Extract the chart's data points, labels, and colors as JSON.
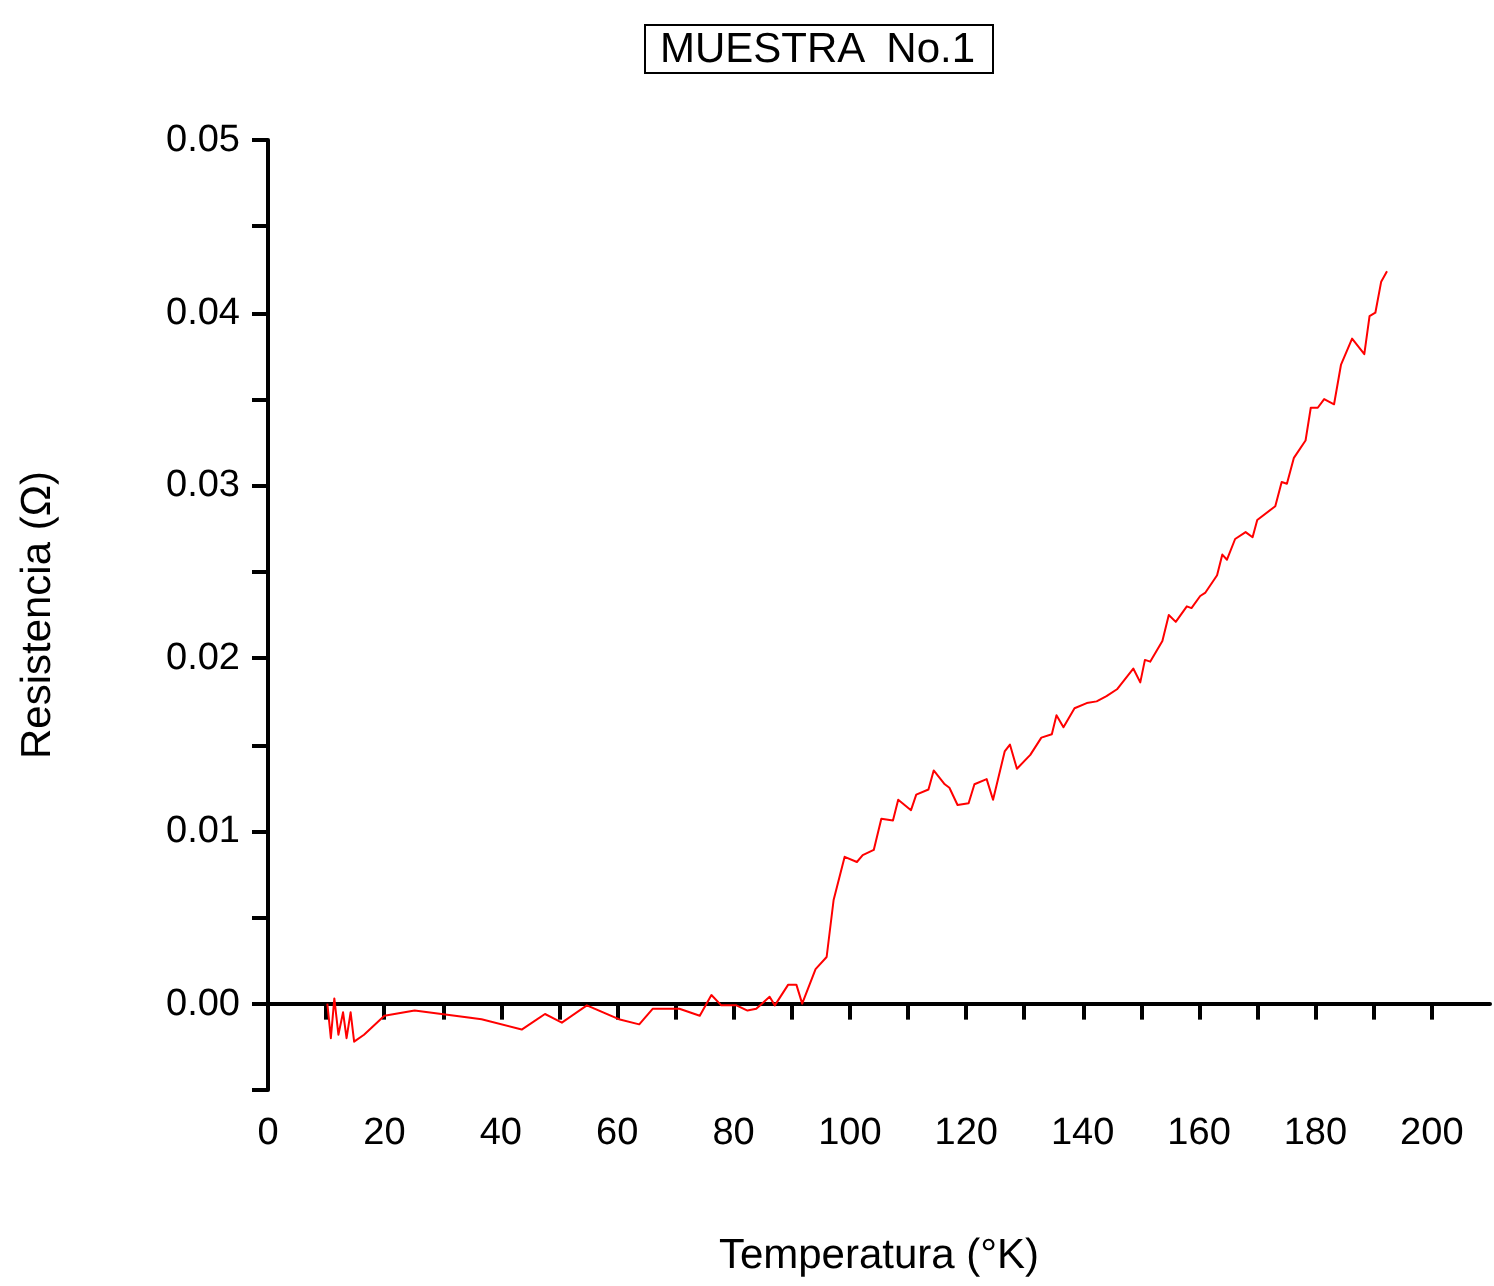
{
  "chart_data": {
    "type": "line",
    "title": "MUESTRA  No.1",
    "xlabel": "Temperatura (°K)",
    "ylabel": "Resistencia (Ω)",
    "xlim": [
      0,
      210
    ],
    "ylim": [
      -0.005,
      0.05
    ],
    "xticks": [
      0,
      {
        "value": 10,
        "label": null
      },
      20,
      {
        "value": 30,
        "label": null
      },
      40,
      {
        "value": 50,
        "label": null
      },
      60,
      {
        "value": 70,
        "label": null
      },
      80,
      {
        "value": 90,
        "label": null
      },
      100,
      {
        "value": 110,
        "label": null
      },
      120,
      {
        "value": 130,
        "label": null
      },
      140,
      {
        "value": 150,
        "label": null
      },
      160,
      {
        "value": 170,
        "label": null
      },
      180,
      {
        "value": 190,
        "label": null
      },
      200
    ],
    "yticks": [
      {
        "value": -0.005,
        "label": null
      },
      {
        "value": 0,
        "label": "0.00"
      },
      {
        "value": 0.005,
        "label": null
      },
      {
        "value": 0.01,
        "label": "0.01"
      },
      {
        "value": 0.015,
        "label": null
      },
      {
        "value": 0.02,
        "label": "0.02"
      },
      {
        "value": 0.025,
        "label": null
      },
      {
        "value": 0.03,
        "label": "0.03"
      },
      {
        "value": 0.035,
        "label": null
      },
      {
        "value": 0.04,
        "label": "0.04"
      },
      {
        "value": 0.045,
        "label": null
      },
      {
        "value": 0.05,
        "label": "0.05"
      }
    ],
    "marker": "none",
    "line_style": "solid",
    "series": [
      {
        "color": "#ff0000",
        "x": [
          10.2,
          10.8,
          11.4,
          12.1,
          12.9,
          13.5,
          14.2,
          14.8,
          16.5,
          20,
          25.2,
          29.8,
          36.7,
          43.6,
          47.6,
          50.5,
          54.8,
          60.3,
          63.8,
          66.1,
          70.7,
          74.2,
          76.2,
          77.9,
          80.5,
          82.4,
          83.9,
          86.2,
          87.1,
          89.4,
          90.8,
          91.8,
          94.1,
          96.0,
          97.2,
          99.1,
          101.2,
          102.2,
          104.1,
          105.4,
          107.4,
          108.3,
          110.5,
          111.4,
          113.5,
          114.4,
          116.3,
          117.1,
          118.5,
          120.4,
          121.4,
          123.5,
          124.6,
          126.6,
          127.5,
          128.7,
          131.0,
          132.9,
          134.7,
          135.5,
          136.7,
          138.6,
          140.7,
          142.4,
          144.1,
          145.9,
          148.7,
          149.9,
          150.7,
          151.6,
          153.7,
          154.8,
          156.0,
          157.9,
          158.7,
          160.2,
          161.1,
          163.1,
          164.0,
          164.8,
          166.2,
          168.0,
          169.2,
          170.0,
          173.1,
          174.2,
          175.1,
          176.3,
          178.3,
          179.2,
          180.4,
          181.5,
          183.2,
          184.4,
          186.3,
          188.4,
          189.3,
          190.3,
          191.3,
          192.3
        ],
        "values": [
          0,
          -0.002,
          0.0003,
          -0.0018,
          -0.0005,
          -0.002,
          -0.0005,
          -0.0022,
          -0.0018,
          -0.0007,
          -0.0004,
          -0.0006,
          -0.0009,
          -0.0015,
          -0.0006,
          -0.0011,
          -0.0001,
          -0.0009,
          -0.0012,
          -0.0003,
          -0.0003,
          -0.0007,
          0.0005,
          -0.0001,
          -0.0001,
          -0.0004,
          -0.0003,
          0.0004,
          -0.0001,
          0.0011,
          0.0011,
          0,
          0.002,
          0.0027,
          0.006,
          0.0085,
          0.0082,
          0.0086,
          0.0089,
          0.0107,
          0.0106,
          0.0118,
          0.0112,
          0.0121,
          0.0124,
          0.0135,
          0.0127,
          0.0125,
          0.0115,
          0.0116,
          0.0127,
          0.013,
          0.0118,
          0.0146,
          0.015,
          0.0136,
          0.0144,
          0.0154,
          0.0156,
          0.0167,
          0.016,
          0.0171,
          0.0174,
          0.0175,
          0.0178,
          0.0182,
          0.0194,
          0.0186,
          0.0199,
          0.0198,
          0.021,
          0.0225,
          0.0221,
          0.023,
          0.0229,
          0.0236,
          0.0238,
          0.0248,
          0.026,
          0.0257,
          0.0269,
          0.0273,
          0.027,
          0.028,
          0.0288,
          0.0302,
          0.0301,
          0.0316,
          0.0326,
          0.0345,
          0.0345,
          0.035,
          0.0347,
          0.037,
          0.0385,
          0.0376,
          0.0398,
          0.04,
          0.0418,
          0.0424
        ]
      }
    ]
  }
}
